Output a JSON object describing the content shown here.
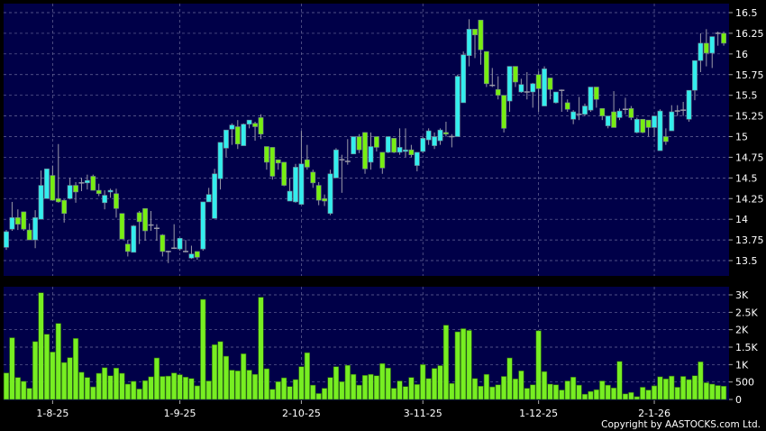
{
  "copyright": "Copyright by AASTOCKS.com Ltd.",
  "colors": {
    "background": "#000000",
    "panel": "#000048",
    "up": "#33eeee",
    "down": "#77ee11",
    "wick": "#9a9aa8",
    "volume": "#77ee22",
    "grid": "#6a6a9a",
    "text": "#ffffff"
  },
  "chart_data": [
    {
      "type": "candlestick",
      "ylim": [
        13.4,
        16.55
      ],
      "y_ticks": [
        "16.5",
        "16.25",
        "16",
        "15.75",
        "15.5",
        "15.25",
        "15",
        "14.75",
        "14.5",
        "14.25",
        "14",
        "13.75",
        "13.5"
      ],
      "grid": true,
      "x_labels": [
        {
          "label": "1-8-25",
          "index": 8
        },
        {
          "label": "1-9-25",
          "index": 30
        },
        {
          "label": "2-10-25",
          "index": 51
        },
        {
          "label": "3-11-25",
          "index": 72
        },
        {
          "label": "1-12-25",
          "index": 92
        },
        {
          "label": "2-1-26",
          "index": 112
        }
      ],
      "ohlc": [
        [
          13.66,
          13.87,
          13.63,
          13.85
        ],
        [
          13.88,
          14.21,
          13.86,
          14.02
        ],
        [
          14.02,
          14.12,
          13.87,
          13.94
        ],
        [
          14.09,
          14.09,
          13.86,
          13.88
        ],
        [
          13.87,
          13.95,
          13.75,
          13.75
        ],
        [
          13.75,
          14.11,
          13.65,
          14.02
        ],
        [
          14.0,
          14.59,
          14.0,
          14.41
        ],
        [
          14.25,
          14.61,
          14.25,
          14.61
        ],
        [
          14.53,
          14.65,
          14.23,
          14.23
        ],
        [
          14.25,
          14.91,
          14.2,
          14.21
        ],
        [
          14.23,
          14.24,
          13.96,
          14.07
        ],
        [
          14.25,
          14.5,
          14.24,
          14.41
        ],
        [
          14.41,
          14.45,
          14.2,
          14.33
        ],
        [
          14.44,
          14.5,
          14.34,
          14.44
        ],
        [
          14.44,
          14.54,
          14.36,
          14.47
        ],
        [
          14.52,
          14.54,
          14.35,
          14.35
        ],
        [
          14.35,
          14.43,
          14.28,
          14.31
        ],
        [
          14.2,
          14.35,
          14.12,
          14.29
        ],
        [
          14.33,
          14.37,
          14.26,
          14.35
        ],
        [
          14.31,
          14.37,
          14.02,
          14.13
        ],
        [
          14.07,
          14.07,
          13.76,
          13.76
        ],
        [
          13.7,
          13.75,
          13.55,
          13.61
        ],
        [
          13.6,
          13.93,
          13.6,
          13.92
        ],
        [
          14.08,
          14.1,
          13.7,
          13.97
        ],
        [
          14.13,
          14.13,
          13.74,
          13.86
        ],
        [
          13.93,
          14.1,
          13.86,
          13.93
        ],
        [
          13.89,
          13.94,
          13.74,
          13.89
        ],
        [
          13.81,
          13.82,
          13.55,
          13.61
        ],
        [
          13.61,
          13.62,
          13.47,
          13.61
        ],
        [
          13.65,
          13.94,
          13.64,
          13.65
        ],
        [
          13.64,
          13.77,
          13.62,
          13.77
        ],
        [
          13.61,
          13.75,
          13.6,
          13.61
        ],
        [
          13.53,
          13.68,
          13.52,
          13.58
        ],
        [
          13.61,
          13.61,
          13.51,
          13.54
        ],
        [
          13.64,
          14.21,
          13.62,
          14.21
        ],
        [
          14.21,
          14.38,
          14.21,
          14.3
        ],
        [
          14.01,
          14.61,
          14.01,
          14.55
        ],
        [
          14.49,
          14.93,
          14.36,
          14.93
        ],
        [
          14.86,
          15.08,
          14.75,
          15.08
        ],
        [
          15.09,
          15.16,
          14.9,
          15.14
        ],
        [
          15.12,
          15.2,
          14.85,
          14.91
        ],
        [
          14.89,
          15.16,
          14.9,
          15.15
        ],
        [
          15.15,
          15.2,
          15.1,
          15.2
        ],
        [
          15.16,
          15.18,
          14.95,
          15.12
        ],
        [
          15.23,
          15.27,
          14.97,
          15.03
        ],
        [
          14.88,
          14.88,
          14.6,
          14.69
        ],
        [
          14.87,
          14.87,
          14.48,
          14.52
        ],
        [
          14.72,
          14.72,
          14.6,
          14.68
        ],
        [
          14.69,
          14.69,
          14.4,
          14.41
        ],
        [
          14.22,
          14.5,
          14.22,
          14.34
        ],
        [
          14.21,
          14.67,
          14.2,
          14.63
        ],
        [
          14.18,
          15.07,
          14.18,
          14.67
        ],
        [
          14.72,
          14.9,
          14.6,
          14.63
        ],
        [
          14.57,
          14.6,
          14.38,
          14.44
        ],
        [
          14.41,
          14.45,
          14.17,
          14.23
        ],
        [
          14.25,
          14.3,
          14.16,
          14.22
        ],
        [
          14.07,
          14.6,
          14.05,
          14.55
        ],
        [
          14.5,
          14.86,
          14.5,
          14.84
        ],
        [
          14.72,
          14.78,
          14.32,
          14.72
        ],
        [
          14.7,
          14.97,
          14.66,
          14.7
        ],
        [
          14.79,
          15.0,
          14.8,
          15.0
        ],
        [
          15.0,
          15.03,
          14.8,
          14.84
        ],
        [
          15.05,
          15.05,
          14.55,
          14.61
        ],
        [
          14.69,
          15.05,
          14.6,
          14.88
        ],
        [
          15.0,
          15.0,
          14.82,
          14.87
        ],
        [
          14.81,
          14.81,
          14.55,
          14.62
        ],
        [
          14.81,
          15.0,
          14.8,
          15.0
        ],
        [
          14.98,
          14.98,
          14.8,
          14.81
        ],
        [
          14.81,
          15.1,
          14.78,
          14.87
        ],
        [
          14.82,
          15.1,
          14.75,
          14.84
        ],
        [
          14.84,
          14.9,
          14.75,
          14.78
        ],
        [
          14.65,
          14.81,
          14.58,
          14.81
        ],
        [
          14.82,
          15.0,
          14.8,
          14.98
        ],
        [
          14.96,
          15.1,
          14.9,
          15.07
        ],
        [
          14.89,
          15.05,
          14.85,
          15.0
        ],
        [
          14.95,
          15.1,
          14.9,
          15.08
        ],
        [
          15.05,
          15.18,
          15.0,
          15.03
        ],
        [
          15.0,
          15.03,
          14.87,
          15.0
        ],
        [
          15.0,
          15.75,
          15.0,
          15.73
        ],
        [
          15.41,
          16.03,
          15.41,
          15.99
        ],
        [
          15.98,
          16.42,
          15.85,
          16.3
        ],
        [
          16.3,
          16.3,
          15.95,
          16.23
        ],
        [
          16.41,
          16.41,
          15.87,
          16.05
        ],
        [
          16.03,
          16.03,
          15.6,
          15.64
        ],
        [
          15.62,
          15.83,
          15.6,
          15.62
        ],
        [
          15.57,
          15.73,
          15.45,
          15.5
        ],
        [
          15.5,
          15.5,
          15.05,
          15.1
        ],
        [
          15.43,
          15.85,
          15.3,
          15.85
        ],
        [
          15.85,
          15.85,
          15.6,
          15.66
        ],
        [
          15.54,
          15.7,
          15.53,
          15.63
        ],
        [
          15.54,
          15.78,
          15.45,
          15.54
        ],
        [
          15.54,
          15.65,
          15.35,
          15.64
        ],
        [
          15.75,
          15.79,
          15.3,
          15.58
        ],
        [
          15.37,
          15.85,
          15.37,
          15.82
        ],
        [
          15.71,
          15.71,
          15.45,
          15.57
        ],
        [
          15.41,
          15.54,
          15.4,
          15.54
        ],
        [
          15.56,
          15.57,
          15.3,
          15.56
        ],
        [
          15.41,
          15.45,
          15.3,
          15.33
        ],
        [
          15.21,
          15.32,
          15.15,
          15.3
        ],
        [
          15.27,
          15.48,
          15.2,
          15.27
        ],
        [
          15.27,
          15.4,
          15.25,
          15.37
        ],
        [
          15.32,
          15.6,
          15.3,
          15.6
        ],
        [
          15.6,
          15.6,
          15.35,
          15.45
        ],
        [
          15.34,
          15.34,
          15.2,
          15.25
        ],
        [
          15.13,
          15.25,
          15.1,
          15.25
        ],
        [
          15.3,
          15.55,
          15.11,
          15.11
        ],
        [
          15.23,
          15.34,
          15.2,
          15.31
        ],
        [
          15.33,
          15.47,
          15.27,
          15.33
        ],
        [
          15.34,
          15.37,
          15.2,
          15.23
        ],
        [
          15.05,
          15.23,
          15.04,
          15.21
        ],
        [
          15.21,
          15.21,
          15.04,
          15.05
        ],
        [
          15.2,
          15.2,
          15.0,
          15.11
        ],
        [
          15.11,
          15.25,
          15.0,
          15.25
        ],
        [
          14.83,
          15.33,
          14.83,
          15.31
        ],
        [
          15.0,
          15.1,
          14.9,
          14.94
        ],
        [
          15.07,
          15.38,
          15.07,
          15.3
        ],
        [
          15.31,
          15.38,
          15.25,
          15.31
        ],
        [
          15.31,
          15.42,
          15.25,
          15.32
        ],
        [
          15.21,
          15.56,
          15.18,
          15.56
        ],
        [
          15.56,
          15.92,
          15.44,
          15.92
        ],
        [
          15.92,
          16.25,
          15.78,
          16.13
        ],
        [
          16.13,
          16.3,
          15.85,
          16.01
        ],
        [
          16.01,
          16.21,
          15.83,
          16.21
        ],
        [
          16.25,
          16.27,
          16.1,
          16.25
        ],
        [
          16.25,
          16.27,
          16.1,
          16.13
        ]
      ]
    },
    {
      "type": "bar",
      "ylim": [
        0,
        3100
      ],
      "y_ticks": [
        {
          "label": "3K",
          "value": 3000
        },
        {
          "label": "2.5K",
          "value": 2500
        },
        {
          "label": "2K",
          "value": 2000
        },
        {
          "label": "1.5K",
          "value": 1500
        },
        {
          "label": "1K",
          "value": 1000
        },
        {
          "label": "500",
          "value": 500
        },
        {
          "label": "0",
          "value": 0
        }
      ],
      "grid": true,
      "values": [
        760,
        1770,
        630,
        520,
        320,
        1660,
        3060,
        1870,
        1360,
        2180,
        1060,
        1200,
        1750,
        780,
        630,
        360,
        750,
        910,
        680,
        900,
        750,
        440,
        520,
        300,
        540,
        650,
        1190,
        660,
        670,
        760,
        710,
        640,
        600,
        390,
        2870,
        530,
        1570,
        1660,
        1240,
        840,
        820,
        1310,
        840,
        720,
        2930,
        880,
        290,
        510,
        620,
        370,
        570,
        940,
        1340,
        410,
        170,
        320,
        630,
        940,
        510,
        980,
        720,
        410,
        690,
        720,
        680,
        1030,
        900,
        320,
        530,
        370,
        630,
        430,
        1000,
        600,
        890,
        970,
        2130,
        460,
        1940,
        2030,
        1980,
        600,
        380,
        720,
        360,
        420,
        660,
        1190,
        590,
        820,
        320,
        420,
        1970,
        800,
        440,
        420,
        270,
        530,
        640,
        410,
        150,
        230,
        280,
        530,
        410,
        330,
        1090,
        160,
        200,
        80,
        350,
        270,
        390,
        650,
        590,
        670,
        350,
        660,
        570,
        680,
        1080,
        480,
        440,
        400,
        380
      ]
    }
  ]
}
